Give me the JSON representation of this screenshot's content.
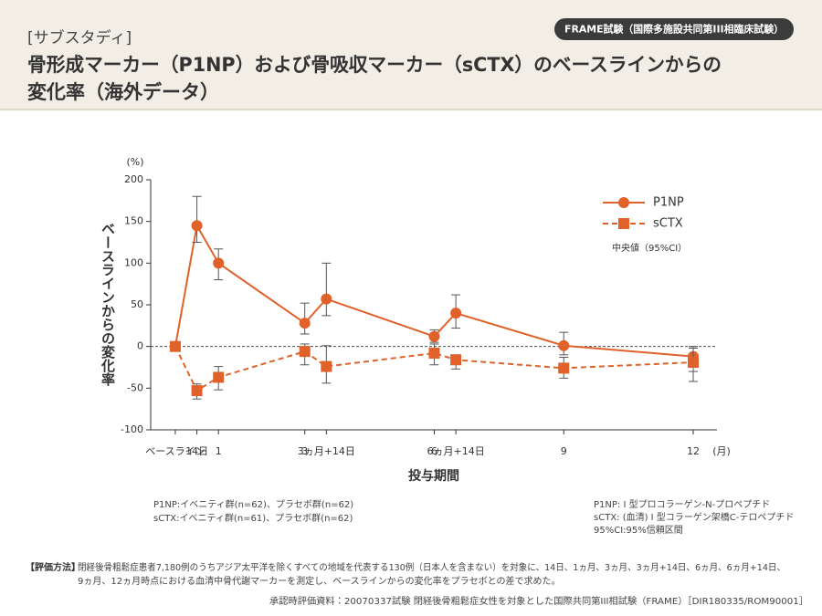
{
  "header": {
    "tag": "[サブスタディ]",
    "title_lines": [
      "骨形成マーカー（P1NP）および骨吸収マーカー（sCTX）のベースラインからの",
      "変化率（海外データ）"
    ],
    "badge": "FRAME試験（国際多施設共同第III相臨床試験）"
  },
  "chart_data": {
    "type": "line",
    "y_label": "ベースラインからの変化率",
    "y_unit": "(%)",
    "x_label": "投与期間",
    "x_unit": "(月)",
    "legend_note": "中央値（95%CI）",
    "legend_position": "upper right",
    "x": [
      0,
      0.5,
      1,
      3,
      3.5,
      6,
      6.5,
      9,
      12
    ],
    "xlim": [
      -0.57,
      12.55
    ],
    "xticks": [
      {
        "value": 0,
        "label": "ベースライン"
      },
      {
        "value": 0.5,
        "label": "14日"
      },
      1,
      3,
      {
        "value": 3.5,
        "label": "3ヵ月+14日"
      },
      6,
      {
        "value": 6.5,
        "label": "6ヵ月+14日"
      },
      9,
      12
    ],
    "ylim": [
      -100,
      200
    ],
    "yticks": [
      -100,
      -50,
      0,
      50,
      100,
      150,
      200
    ],
    "zero_line": "dashed",
    "series": [
      {
        "name": "P1NP",
        "color": "#e0622a",
        "line": "solid",
        "marker": "circle",
        "values": [
          0,
          145,
          100,
          28,
          57,
          12,
          40,
          1,
          -12
        ],
        "ci_low": [
          null,
          125,
          80,
          15,
          37,
          5,
          22,
          -10,
          -30
        ],
        "ci_high": [
          null,
          180,
          117,
          52,
          100,
          20,
          62,
          17,
          0
        ]
      },
      {
        "name": "sCTX",
        "color": "#e0622a",
        "line": "dashed",
        "marker": "square",
        "values": [
          0,
          -53,
          -37,
          -6,
          -24,
          -8,
          -16,
          -26,
          -19
        ],
        "ci_low": [
          null,
          -63,
          -52,
          -22,
          -44,
          -22,
          -27,
          -38,
          -42
        ],
        "ci_high": [
          null,
          -45,
          -24,
          3,
          1,
          3,
          -10,
          -13,
          -2
        ]
      }
    ]
  },
  "notes": {
    "left": [
      "P1NP:イベニティ群(n=62)、プラセボ群(n=62)",
      "sCTX:イベニティ群(n=61)、プラセボ群(n=62)"
    ],
    "right": [
      "P1NP: I 型プロコラーゲン-N-プロペプチド",
      "sCTX: (血清) I 型コラーゲン架橋C-テロペプチド",
      "95%CI:95%信頼区間"
    ],
    "method_label": "【評価方法】",
    "method_lines": [
      "閉経後骨粗鬆症患者7,180例のうちアジア太平洋を除くすべての地域を代表する130例（日本人を含まない）を対象に、14日、1ヵ月、3ヵ月、3ヵ月+14日、6ヵ月、6ヵ月+14日、",
      "9ヵ月、12ヵ月時点における血清中骨代謝マーカーを測定し、ベースラインからの変化率をプラセボとの差で求めた。"
    ],
    "source": "承認時評価資料：20070337試験 閉経後骨粗鬆症女性を対象とした国際共同第III相試験（FRAME）［DIR180335/ROM90001］"
  }
}
